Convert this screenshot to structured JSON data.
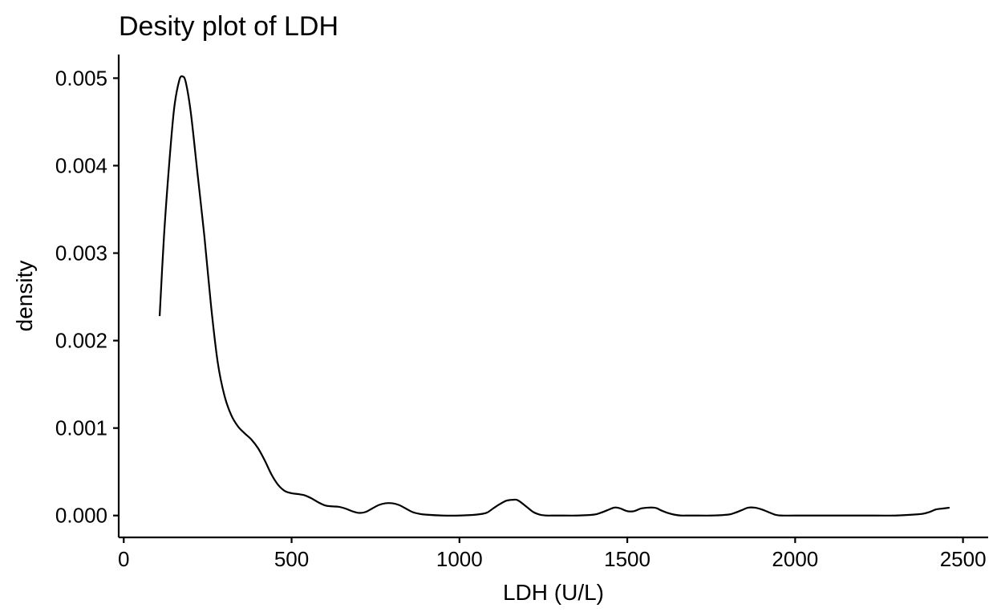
{
  "chart_data": {
    "type": "line",
    "title": "Desity plot of LDH",
    "xlabel": "LDH (U/L)",
    "ylabel": "density",
    "xlim": [
      -15,
      2575
    ],
    "ylim": [
      -0.00025,
      0.00527
    ],
    "x_ticks": [
      {
        "value": 0,
        "label": "0"
      },
      {
        "value": 500,
        "label": "500"
      },
      {
        "value": 1000,
        "label": "1000"
      },
      {
        "value": 1500,
        "label": "1500"
      },
      {
        "value": 2000,
        "label": "2000"
      },
      {
        "value": 2500,
        "label": "2500"
      }
    ],
    "y_ticks": [
      {
        "value": 0.0,
        "label": "0.000"
      },
      {
        "value": 0.001,
        "label": "0.001"
      },
      {
        "value": 0.002,
        "label": "0.002"
      },
      {
        "value": 0.003,
        "label": "0.003"
      },
      {
        "value": 0.004,
        "label": "0.004"
      },
      {
        "value": 0.005,
        "label": "0.005"
      }
    ],
    "grid": false,
    "legend": "none",
    "line_color": "#000000",
    "series": [
      {
        "x": [
          107,
          120,
          135,
          150,
          165,
          175,
          185,
          200,
          220,
          240,
          260,
          280,
          300,
          320,
          340,
          360,
          380,
          400,
          420,
          440,
          460,
          480,
          500,
          520,
          540,
          560,
          580,
          600,
          620,
          640,
          660,
          680,
          700,
          720,
          740,
          760,
          780,
          800,
          820,
          840,
          860,
          880,
          900,
          950,
          1000,
          1050,
          1080,
          1100,
          1120,
          1140,
          1160,
          1170,
          1180,
          1200,
          1220,
          1240,
          1260,
          1280,
          1300,
          1350,
          1400,
          1420,
          1440,
          1460,
          1470,
          1480,
          1500,
          1520,
          1540,
          1560,
          1580,
          1590,
          1600,
          1620,
          1640,
          1660,
          1680,
          1700,
          1750,
          1800,
          1820,
          1840,
          1860,
          1880,
          1900,
          1920,
          1940,
          1960,
          2000,
          2100,
          2200,
          2300,
          2350,
          2380,
          2400,
          2420,
          2440,
          2460
        ],
        "y": [
          0.00228,
          0.0032,
          0.004,
          0.00465,
          0.00497,
          0.00502,
          0.00495,
          0.0046,
          0.0039,
          0.0032,
          0.0024,
          0.00175,
          0.00137,
          0.00115,
          0.00102,
          0.00094,
          0.00087,
          0.00077,
          0.00063,
          0.00047,
          0.00035,
          0.00028,
          0.000255,
          0.000245,
          0.00023,
          0.000195,
          0.00015,
          0.000115,
          0.000105,
          0.0001,
          8e-05,
          5e-05,
          3e-05,
          4e-05,
          8e-05,
          0.00012,
          0.00014,
          0.00014,
          0.00012,
          8e-05,
          4e-05,
          2e-05,
          1e-05,
          0.0,
          0.0,
          1e-05,
          3e-05,
          8e-05,
          0.00013,
          0.00017,
          0.00018,
          0.00018,
          0.00016,
          0.0001,
          4e-05,
          1e-05,
          0.0,
          0.0,
          0.0,
          0.0,
          1e-05,
          3e-05,
          6e-05,
          9e-05,
          9e-05,
          8e-05,
          5e-05,
          5e-05,
          8e-05,
          9e-05,
          9e-05,
          8e-05,
          6e-05,
          3e-05,
          1e-05,
          0.0,
          0.0,
          0.0,
          0.0,
          1e-05,
          3e-05,
          6e-05,
          9e-05,
          9e-05,
          7e-05,
          4e-05,
          1e-05,
          0.0,
          0.0,
          0.0,
          0.0,
          0.0,
          1e-05,
          2e-05,
          4e-05,
          7e-05,
          8e-05,
          9e-05
        ]
      }
    ]
  }
}
